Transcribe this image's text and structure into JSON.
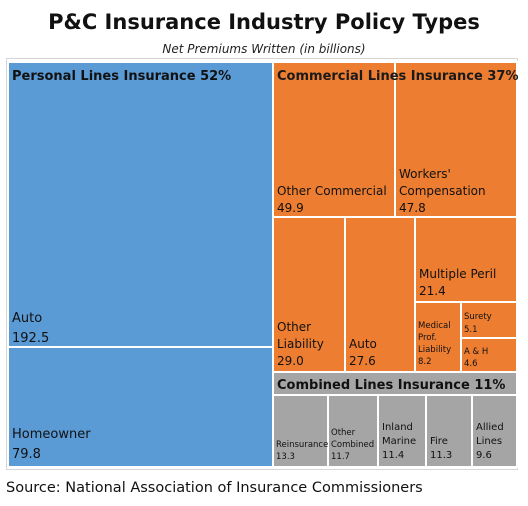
{
  "title": "P&C Insurance Industry Policy Types",
  "subtitle": "Net Premiums Written (in billions)",
  "source": "Source: National Association of Insurance Commissioners",
  "colors": {
    "personal": "#5b9bd5",
    "commercial": "#ed7d31",
    "combined": "#a5a5a5",
    "border": "#ffffff"
  },
  "chart_data": {
    "type": "treemap",
    "groups": [
      {
        "name": "Personal Lines Insurance 52%",
        "color": "#5b9bd5",
        "items": [
          {
            "label": "Auto",
            "value": 192.5
          },
          {
            "label": "Homeowner",
            "value": 79.8
          }
        ]
      },
      {
        "name": "Commercial Lines Insurance 37%",
        "color": "#ed7d31",
        "items": [
          {
            "label": "Other Commercial",
            "value": 49.9
          },
          {
            "label": "Workers' Compensation",
            "value": 47.8
          },
          {
            "label": "Other Liability",
            "value": 29.0
          },
          {
            "label": "Auto",
            "value": 27.6
          },
          {
            "label": "Multiple Peril",
            "value": 21.4
          },
          {
            "label": "Medical Prof. Liability",
            "value": 8.2
          },
          {
            "label": "Surety",
            "value": 5.1
          },
          {
            "label": "A & H",
            "value": 4.6
          }
        ]
      },
      {
        "name": "Combined Lines Insurance 11%",
        "color": "#a5a5a5",
        "items": [
          {
            "label": "Reinsurance",
            "value": 13.3
          },
          {
            "label": "Other Combined",
            "value": 11.7
          },
          {
            "label": "Inland Marine",
            "value": 11.4
          },
          {
            "label": "Fire",
            "value": 11.3
          },
          {
            "label": "Allied Lines",
            "value": 9.6
          }
        ]
      }
    ]
  }
}
